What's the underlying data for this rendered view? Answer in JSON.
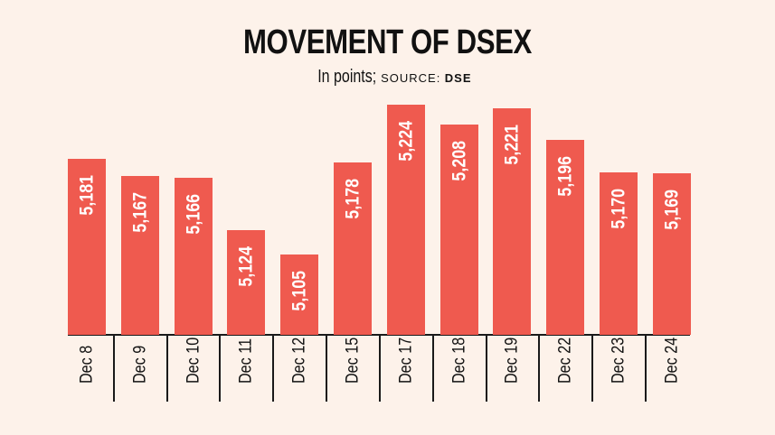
{
  "header": {
    "title": "MOVEMENT OF DSEX",
    "subtitle_main": "In points;",
    "subtitle_source_label": "SOURCE:",
    "subtitle_source_name": "DSE"
  },
  "colors": {
    "background": "#fdf2ea",
    "bar": "#ef5a4f",
    "bar_label": "#ffffff",
    "axis": "#1a1a1a",
    "text": "#111111"
  },
  "chart_data": {
    "type": "bar",
    "title": "MOVEMENT OF DSEX",
    "subtitle": "In points; SOURCE: DSE",
    "xlabel": "",
    "ylabel": "",
    "categories": [
      "Dec 8",
      "Dec 9",
      "Dec 10",
      "Dec 11",
      "Dec 12",
      "Dec 15",
      "Dec 17",
      "Dec 18",
      "Dec 19",
      "Dec 22",
      "Dec 23",
      "Dec 24"
    ],
    "values": [
      5181,
      5167,
      5166,
      5124,
      5105,
      5178,
      5224,
      5208,
      5221,
      5196,
      5170,
      5169
    ],
    "value_labels": [
      "5,181",
      "5,167",
      "5,166",
      "5,124",
      "5,105",
      "5,178",
      "5,224",
      "5,208",
      "5,221",
      "5,196",
      "5,170",
      "5,169"
    ],
    "grid": false,
    "legend": null,
    "y_axis_visible": false,
    "data_labels": "inside-top-rotated"
  }
}
